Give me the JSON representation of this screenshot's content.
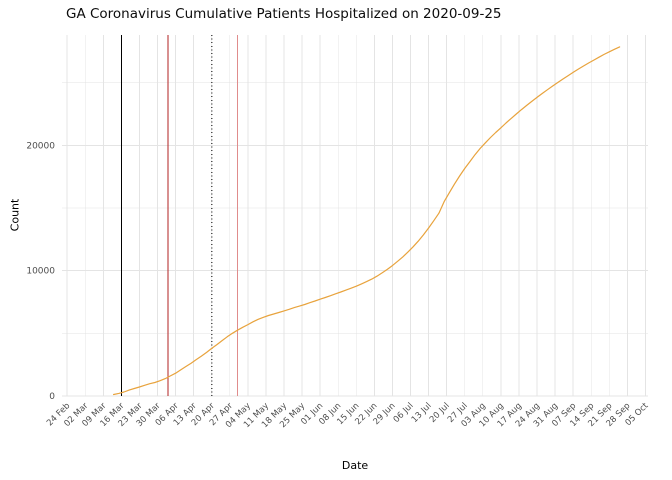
{
  "chart_data": {
    "type": "line",
    "title": "GA Coronavirus Cumulative Patients Hospitalized on 2020-09-25",
    "xlabel": "Date",
    "ylabel": "Count",
    "x_domain": [
      "2020-02-22",
      "2020-10-06"
    ],
    "ylim": [
      0,
      28800
    ],
    "grid": true,
    "legend": "none",
    "line_color": "#E8A33D",
    "grid_major_color": "#E4E4E4",
    "grid_minor_color": "#F1F1F1",
    "tick_label_color": "#4D4D4D",
    "y_ticks": [
      {
        "label": "0",
        "value": 0
      },
      {
        "label": "10000",
        "value": 10000
      },
      {
        "label": "20000",
        "value": 20000
      }
    ],
    "y_minor": [
      5000,
      15000,
      25000
    ],
    "x_ticks": [
      {
        "label": "24 Feb",
        "date": "2020-02-24"
      },
      {
        "label": "02 Mar",
        "date": "2020-03-02"
      },
      {
        "label": "09 Mar",
        "date": "2020-03-09"
      },
      {
        "label": "16 Mar",
        "date": "2020-03-16"
      },
      {
        "label": "23 Mar",
        "date": "2020-03-23"
      },
      {
        "label": "30 Mar",
        "date": "2020-03-30"
      },
      {
        "label": "06 Apr",
        "date": "2020-04-06"
      },
      {
        "label": "13 Apr",
        "date": "2020-04-13"
      },
      {
        "label": "20 Apr",
        "date": "2020-04-20"
      },
      {
        "label": "27 Apr",
        "date": "2020-04-27"
      },
      {
        "label": "04 May",
        "date": "2020-05-04"
      },
      {
        "label": "11 May",
        "date": "2020-05-11"
      },
      {
        "label": "18 May",
        "date": "2020-05-18"
      },
      {
        "label": "25 May",
        "date": "2020-05-25"
      },
      {
        "label": "01 Jun",
        "date": "2020-06-01"
      },
      {
        "label": "08 Jun",
        "date": "2020-06-08"
      },
      {
        "label": "15 Jun",
        "date": "2020-06-15"
      },
      {
        "label": "22 Jun",
        "date": "2020-06-22"
      },
      {
        "label": "29 Jun",
        "date": "2020-06-29"
      },
      {
        "label": "06 Jul",
        "date": "2020-07-06"
      },
      {
        "label": "13 Jul",
        "date": "2020-07-13"
      },
      {
        "label": "20 Jul",
        "date": "2020-07-20"
      },
      {
        "label": "27 Jul",
        "date": "2020-07-27"
      },
      {
        "label": "03 Aug",
        "date": "2020-08-03"
      },
      {
        "label": "10 Aug",
        "date": "2020-08-10"
      },
      {
        "label": "17 Aug",
        "date": "2020-08-17"
      },
      {
        "label": "24 Aug",
        "date": "2020-08-24"
      },
      {
        "label": "31 Aug",
        "date": "2020-08-31"
      },
      {
        "label": "07 Sep",
        "date": "2020-09-07"
      },
      {
        "label": "14 Sep",
        "date": "2020-09-14"
      },
      {
        "label": "21 Sep",
        "date": "2020-09-21"
      },
      {
        "label": "28 Sep",
        "date": "2020-09-28"
      },
      {
        "label": "05 Oct",
        "date": "2020-10-05"
      }
    ],
    "vlines": [
      {
        "date": "2020-03-16",
        "color": "#000000",
        "style": "solid"
      },
      {
        "date": "2020-04-03",
        "color": "#B22222",
        "style": "solid"
      },
      {
        "date": "2020-04-20",
        "color": "#4D4D4D",
        "style": "dotted"
      },
      {
        "date": "2020-04-30",
        "color": "#E08C8C",
        "style": "solid"
      }
    ],
    "series": [
      {
        "name": "cumulative-patients-hospitalized",
        "points": [
          [
            "2020-03-13",
            120
          ],
          [
            "2020-03-15",
            210
          ],
          [
            "2020-03-17",
            320
          ],
          [
            "2020-03-19",
            470
          ],
          [
            "2020-03-21",
            600
          ],
          [
            "2020-03-23",
            720
          ],
          [
            "2020-03-25",
            850
          ],
          [
            "2020-03-27",
            980
          ],
          [
            "2020-03-29",
            1080
          ],
          [
            "2020-03-31",
            1220
          ],
          [
            "2020-04-02",
            1390
          ],
          [
            "2020-04-04",
            1600
          ],
          [
            "2020-04-06",
            1820
          ],
          [
            "2020-04-08",
            2080
          ],
          [
            "2020-04-10",
            2350
          ],
          [
            "2020-04-12",
            2620
          ],
          [
            "2020-04-14",
            2900
          ],
          [
            "2020-04-16",
            3180
          ],
          [
            "2020-04-18",
            3480
          ],
          [
            "2020-04-20",
            3800
          ],
          [
            "2020-04-22",
            4100
          ],
          [
            "2020-04-24",
            4420
          ],
          [
            "2020-04-26",
            4720
          ],
          [
            "2020-04-28",
            5000
          ],
          [
            "2020-04-30",
            5250
          ],
          [
            "2020-05-02",
            5480
          ],
          [
            "2020-05-04",
            5700
          ],
          [
            "2020-05-06",
            5920
          ],
          [
            "2020-05-08",
            6120
          ],
          [
            "2020-05-10",
            6280
          ],
          [
            "2020-05-12",
            6420
          ],
          [
            "2020-05-14",
            6540
          ],
          [
            "2020-05-16",
            6660
          ],
          [
            "2020-05-18",
            6790
          ],
          [
            "2020-05-20",
            6920
          ],
          [
            "2020-05-22",
            7050
          ],
          [
            "2020-05-24",
            7170
          ],
          [
            "2020-05-26",
            7300
          ],
          [
            "2020-05-28",
            7440
          ],
          [
            "2020-05-30",
            7580
          ],
          [
            "2020-06-01",
            7720
          ],
          [
            "2020-06-03",
            7860
          ],
          [
            "2020-06-05",
            8000
          ],
          [
            "2020-06-07",
            8150
          ],
          [
            "2020-06-09",
            8300
          ],
          [
            "2020-06-11",
            8450
          ],
          [
            "2020-06-13",
            8600
          ],
          [
            "2020-06-15",
            8760
          ],
          [
            "2020-06-17",
            8940
          ],
          [
            "2020-06-19",
            9130
          ],
          [
            "2020-06-21",
            9330
          ],
          [
            "2020-06-23",
            9560
          ],
          [
            "2020-06-25",
            9820
          ],
          [
            "2020-06-27",
            10100
          ],
          [
            "2020-06-29",
            10400
          ],
          [
            "2020-07-01",
            10750
          ],
          [
            "2020-07-03",
            11100
          ],
          [
            "2020-07-05",
            11480
          ],
          [
            "2020-07-07",
            11900
          ],
          [
            "2020-07-09",
            12350
          ],
          [
            "2020-07-11",
            12850
          ],
          [
            "2020-07-13",
            13400
          ],
          [
            "2020-07-15",
            13980
          ],
          [
            "2020-07-17",
            14580
          ],
          [
            "2020-07-19",
            15500
          ],
          [
            "2020-07-21",
            16200
          ],
          [
            "2020-07-23",
            16900
          ],
          [
            "2020-07-25",
            17550
          ],
          [
            "2020-07-27",
            18150
          ],
          [
            "2020-07-29",
            18700
          ],
          [
            "2020-07-31",
            19250
          ],
          [
            "2020-08-02",
            19750
          ],
          [
            "2020-08-04",
            20200
          ],
          [
            "2020-08-06",
            20620
          ],
          [
            "2020-08-08",
            21020
          ],
          [
            "2020-08-10",
            21400
          ],
          [
            "2020-08-12",
            21780
          ],
          [
            "2020-08-14",
            22150
          ],
          [
            "2020-08-16",
            22500
          ],
          [
            "2020-08-18",
            22850
          ],
          [
            "2020-08-20",
            23180
          ],
          [
            "2020-08-22",
            23500
          ],
          [
            "2020-08-24",
            23820
          ],
          [
            "2020-08-26",
            24130
          ],
          [
            "2020-08-28",
            24430
          ],
          [
            "2020-08-30",
            24720
          ],
          [
            "2020-09-01",
            25000
          ],
          [
            "2020-09-03",
            25280
          ],
          [
            "2020-09-05",
            25550
          ],
          [
            "2020-09-07",
            25820
          ],
          [
            "2020-09-09",
            26080
          ],
          [
            "2020-09-11",
            26330
          ],
          [
            "2020-09-13",
            26570
          ],
          [
            "2020-09-15",
            26800
          ],
          [
            "2020-09-17",
            27030
          ],
          [
            "2020-09-19",
            27250
          ],
          [
            "2020-09-21",
            27460
          ],
          [
            "2020-09-23",
            27660
          ],
          [
            "2020-09-25",
            27850
          ]
        ]
      }
    ]
  }
}
